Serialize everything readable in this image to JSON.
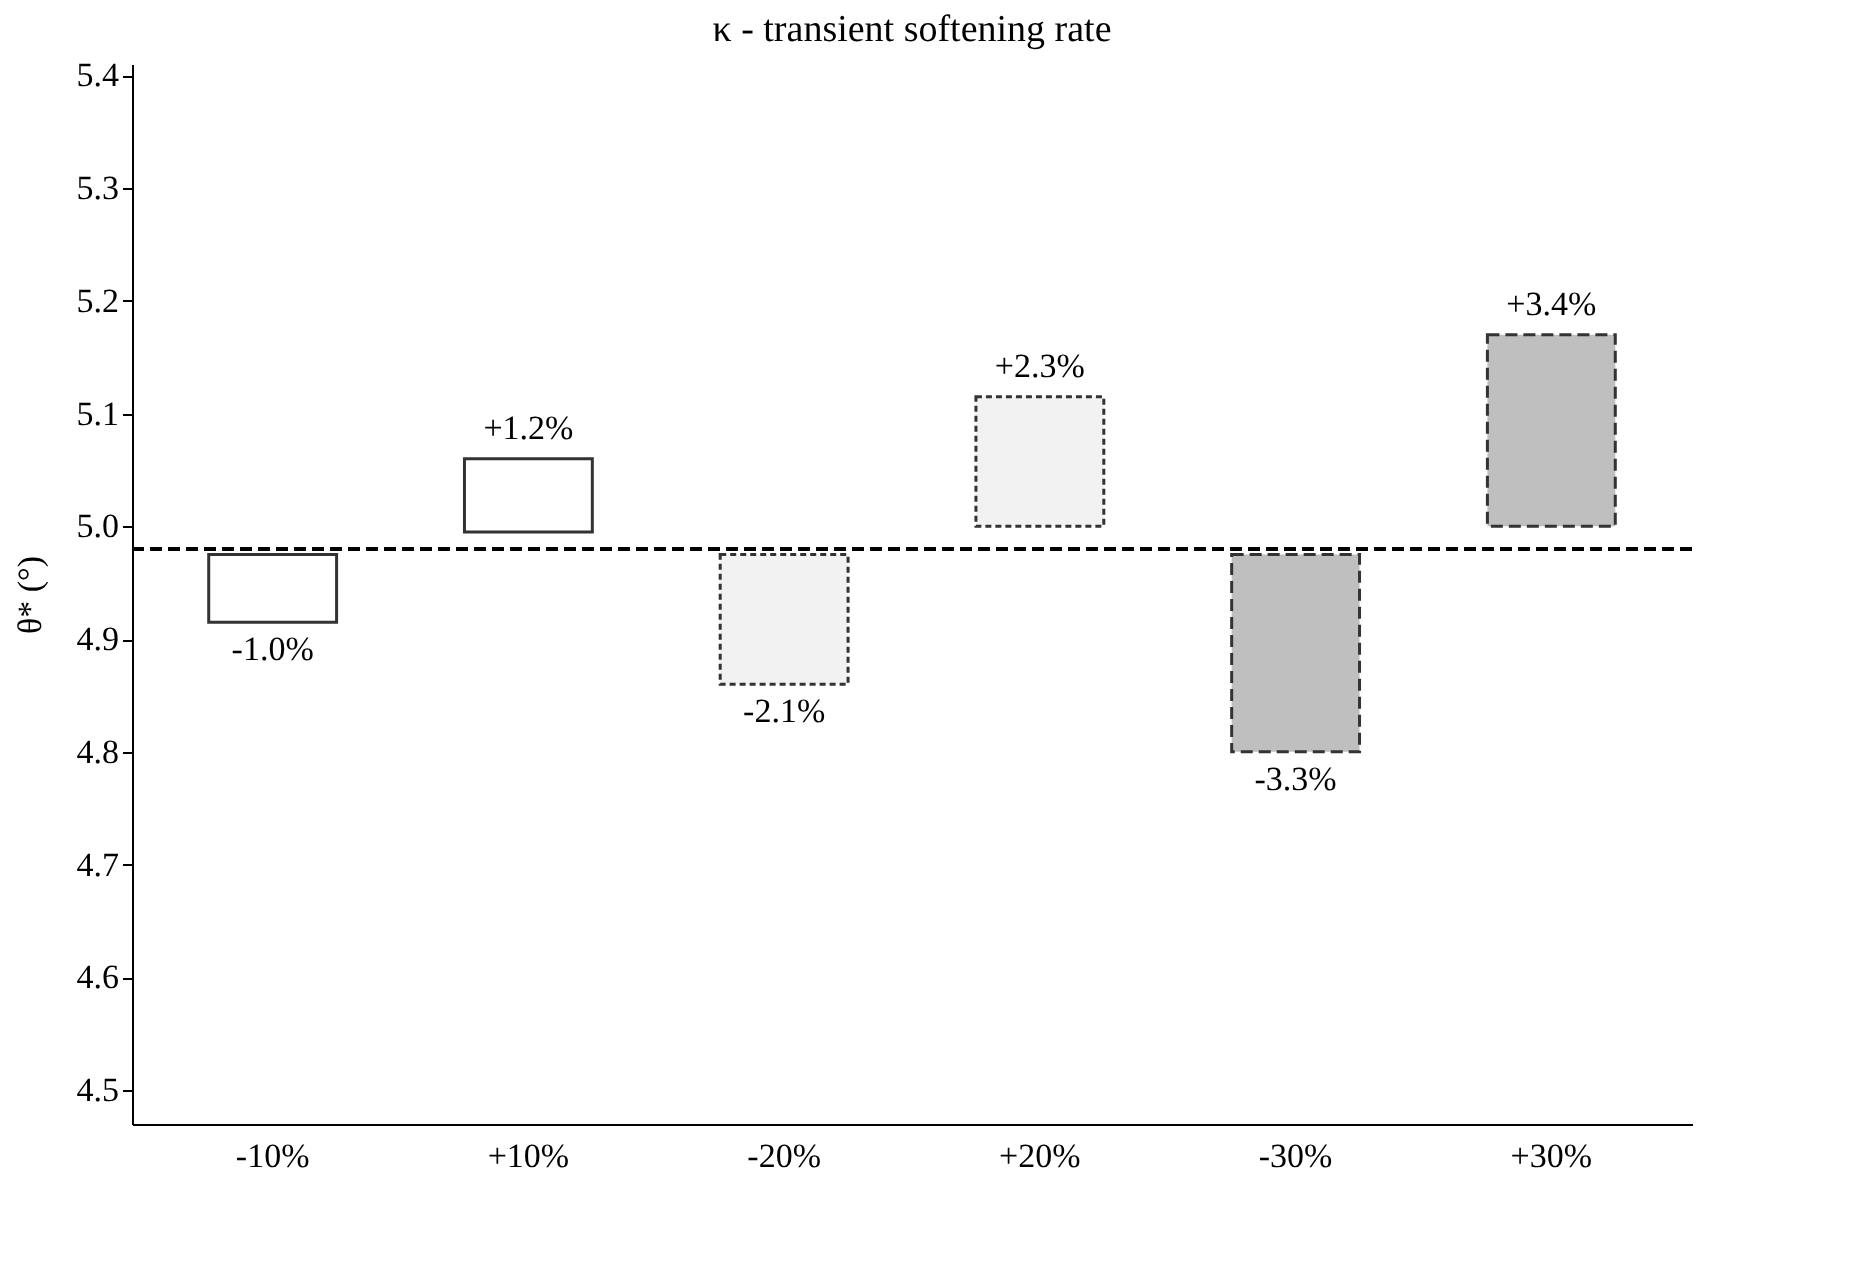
{
  "chart_data": {
    "type": "bar",
    "title": "κ - transient softening rate",
    "ylabel": "θ* (°)",
    "categories": [
      "-10%",
      "+10%",
      "-20%",
      "+20%",
      "-30%",
      "+30%"
    ],
    "series": [
      {
        "color": "#ffffff",
        "line_style": "solid",
        "base": [
          4.915,
          4.995,
          null,
          null,
          null,
          null
        ],
        "values": [
          0.06,
          0.065,
          null,
          null,
          null,
          null
        ]
      },
      {
        "color": "#f2f2f2",
        "line_style": "dotted",
        "base": [
          null,
          null,
          4.86,
          5.0,
          null,
          null
        ],
        "values": [
          null,
          null,
          0.115,
          0.115,
          null,
          null
        ]
      },
      {
        "color": "#bfbfbf",
        "line_style": "dashed",
        "base": [
          null,
          null,
          null,
          null,
          4.8,
          5.0
        ],
        "values": [
          null,
          null,
          null,
          null,
          0.175,
          0.17
        ]
      }
    ],
    "annotations": [
      {
        "text": "-1.0%",
        "x": "-10%",
        "y": 4.915
      },
      {
        "text": "+1.2%",
        "x": "+10%",
        "y": 5.06
      },
      {
        "text": "-2.1%",
        "x": "-20%",
        "y": 4.86
      },
      {
        "text": "+2.3%",
        "x": "+20%",
        "y": 5.115
      },
      {
        "text": "-3.3%",
        "x": "-30%",
        "y": 4.8
      },
      {
        "text": "+3.4%",
        "x": "+30%",
        "y": 5.17
      }
    ],
    "ylim": [
      4.47,
      5.41
    ],
    "yticks": [
      4.5,
      4.6,
      4.7,
      4.8,
      4.9,
      {
        "value": 5.0,
        "label": "5.0"
      },
      5.1,
      5.2,
      5.3,
      5.4
    ],
    "ref_lines": [
      {
        "axis": "y",
        "value": 4.98,
        "color": "#000000",
        "line_style": "dashed"
      }
    ],
    "grid": false
  }
}
